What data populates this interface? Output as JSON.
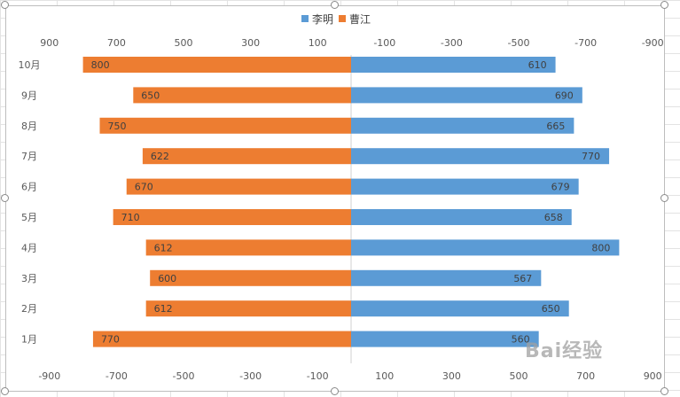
{
  "chart_data": {
    "type": "bar",
    "orientation": "horizontal-butterfly",
    "categories": [
      "10月",
      "9月",
      "8月",
      "7月",
      "6月",
      "5月",
      "4月",
      "3月",
      "2月",
      "1月"
    ],
    "series": [
      {
        "name": "李明",
        "color": "#5b9bd5",
        "side": "right",
        "values": [
          610,
          690,
          665,
          770,
          679,
          658,
          800,
          567,
          650,
          560
        ]
      },
      {
        "name": "曹江",
        "color": "#ed7d31",
        "side": "left",
        "values": [
          800,
          650,
          750,
          622,
          670,
          710,
          612,
          600,
          612,
          770
        ]
      }
    ],
    "xlim": [
      -900,
      900
    ],
    "top_axis_ticks": [
      "900",
      "700",
      "500",
      "300",
      "100",
      "-100",
      "-300",
      "-500",
      "-700",
      "-900"
    ],
    "bottom_axis_ticks": [
      "-900",
      "-700",
      "-500",
      "-300",
      "-100",
      "100",
      "300",
      "500",
      "700",
      "900"
    ],
    "legend_position": "top",
    "grid": false
  },
  "watermark_text": "Bai经验"
}
